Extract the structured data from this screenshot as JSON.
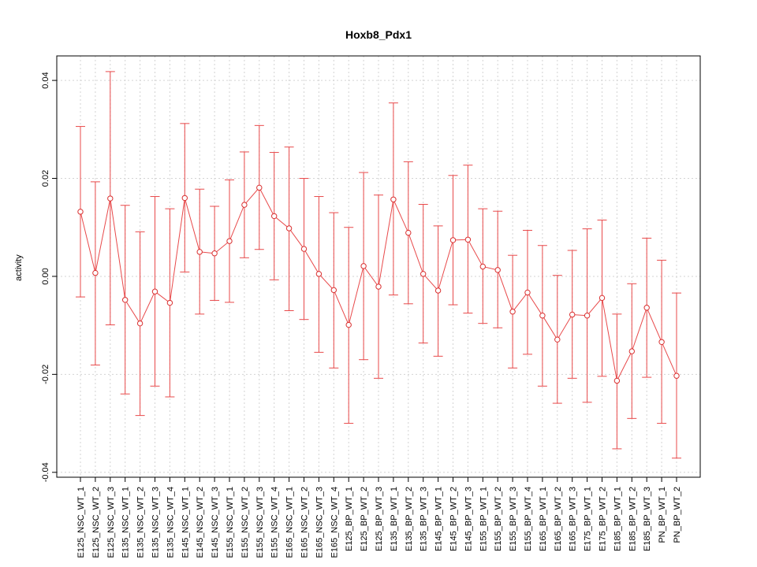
{
  "chart_data": {
    "type": "line",
    "title": "Hoxb8_Pdx1",
    "xlabel": "",
    "ylabel": "activity",
    "ylim": [
      -0.041,
      0.045
    ],
    "yticks": [
      -0.04,
      -0.02,
      0.0,
      0.02,
      0.04
    ],
    "ytick_labels": [
      "-0.04",
      "-0.02",
      "0.00",
      "0.02",
      "0.04"
    ],
    "grid": true,
    "colors": {
      "series": "#e8494a",
      "points": "#d93030"
    },
    "categories": [
      "E125_NSC_WT_1",
      "E125_NSC_WT_2",
      "E125_NSC_WT_3",
      "E135_NSC_WT_1",
      "E135_NSC_WT_2",
      "E135_NSC_WT_3",
      "E135_NSC_WT_4",
      "E145_NSC_WT_1",
      "E145_NSC_WT_2",
      "E145_NSC_WT_3",
      "E155_NSC_WT_1",
      "E155_NSC_WT_2",
      "E155_NSC_WT_3",
      "E155_NSC_WT_4",
      "E165_NSC_WT_1",
      "E165_NSC_WT_2",
      "E165_NSC_WT_3",
      "E165_NSC_WT_4",
      "E125_BP_WT_1",
      "E125_BP_WT_2",
      "E125_BP_WT_3",
      "E135_BP_WT_1",
      "E135_BP_WT_2",
      "E135_BP_WT_3",
      "E145_BP_WT_1",
      "E145_BP_WT_2",
      "E145_BP_WT_3",
      "E155_BP_WT_1",
      "E155_BP_WT_2",
      "E155_BP_WT_3",
      "E155_BP_WT_4",
      "E165_BP_WT_1",
      "E165_BP_WT_2",
      "E165_BP_WT_3",
      "E175_BP_WT_1",
      "E175_BP_WT_2",
      "E185_BP_WT_1",
      "E185_BP_WT_2",
      "E185_BP_WT_3",
      "PN_BP_WT_1",
      "PN_BP_WT_2"
    ],
    "values": [
      0.0132,
      0.0007,
      0.0159,
      -0.0048,
      -0.0096,
      -0.0031,
      -0.0054,
      0.016,
      0.005,
      0.0047,
      0.0072,
      0.0146,
      0.0181,
      0.0123,
      0.0098,
      0.0056,
      0.0005,
      -0.0028,
      -0.0099,
      0.0021,
      -0.0021,
      0.0157,
      0.0089,
      0.0005,
      -0.0029,
      0.0074,
      0.0075,
      0.002,
      0.0013,
      -0.0072,
      -0.0033,
      -0.008,
      -0.0129,
      -0.0078,
      -0.008,
      -0.0044,
      -0.0213,
      -0.0153,
      -0.0064,
      -0.0134,
      -0.0203
    ],
    "upper": [
      0.0306,
      0.0193,
      0.0418,
      0.0145,
      0.0091,
      0.0163,
      0.0138,
      0.0312,
      0.0178,
      0.0143,
      0.0197,
      0.0254,
      0.0308,
      0.0253,
      0.0264,
      0.02,
      0.0163,
      0.013,
      0.01,
      0.0212,
      0.0166,
      0.0354,
      0.0234,
      0.0147,
      0.0103,
      0.0206,
      0.0227,
      0.0138,
      0.0133,
      0.0043,
      0.0094,
      0.0063,
      0.0002,
      0.0053,
      0.0097,
      0.0115,
      -0.0077,
      -0.0015,
      0.0078,
      0.0033,
      -0.0034
    ],
    "lower": [
      -0.0042,
      -0.0181,
      -0.0099,
      -0.024,
      -0.0284,
      -0.0224,
      -0.0246,
      0.0009,
      -0.0077,
      -0.0049,
      -0.0053,
      0.0038,
      0.0055,
      -0.0007,
      -0.007,
      -0.0088,
      -0.0155,
      -0.0187,
      -0.03,
      -0.017,
      -0.0208,
      -0.0038,
      -0.0056,
      -0.0136,
      -0.0163,
      -0.0058,
      -0.0075,
      -0.0096,
      -0.0105,
      -0.0187,
      -0.0159,
      -0.0224,
      -0.0259,
      -0.0208,
      -0.0257,
      -0.0204,
      -0.0352,
      -0.029,
      -0.0206,
      -0.03,
      -0.0371
    ]
  }
}
